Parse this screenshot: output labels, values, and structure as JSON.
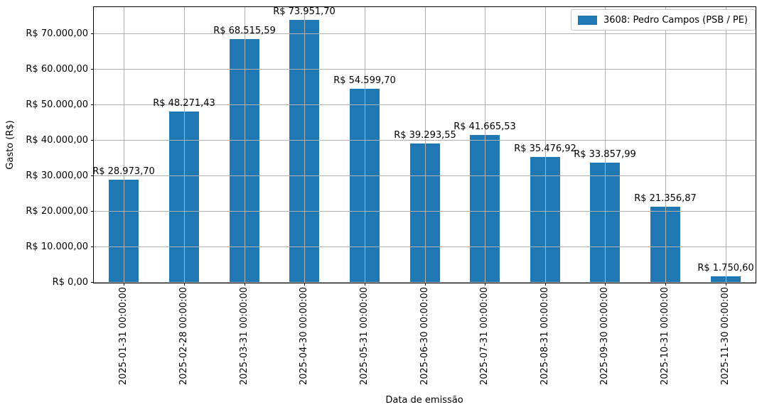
{
  "chart_data": {
    "type": "bar",
    "title": "",
    "xlabel": "Data de emissão",
    "ylabel": "Gasto (R$)",
    "categories": [
      "2025-01-31 00:00:00",
      "2025-02-28 00:00:00",
      "2025-03-31 00:00:00",
      "2025-04-30 00:00:00",
      "2025-05-31 00:00:00",
      "2025-06-30 00:00:00",
      "2025-07-31 00:00:00",
      "2025-08-31 00:00:00",
      "2025-09-30 00:00:00",
      "2025-10-31 00:00:00",
      "2025-11-30 00:00:00"
    ],
    "series": [
      {
        "name": "3608: Pedro Campos (PSB / PE)",
        "color": "#1f77b4",
        "values": [
          28973.7,
          48271.43,
          68515.59,
          73951.7,
          54599.7,
          39293.55,
          41665.53,
          35476.92,
          33857.99,
          21356.87,
          1750.6
        ],
        "value_labels": [
          "R$ 28.973,70",
          "R$ 48.271,43",
          "R$ 68.515,59",
          "R$ 73.951,70",
          "R$ 54.599,70",
          "R$ 39.293,55",
          "R$ 41.665,53",
          "R$ 35.476,92",
          "R$ 33.857,99",
          "R$ 21.356,87",
          "R$ 1.750,60"
        ]
      }
    ],
    "y_axis": {
      "tick_values": [
        0,
        10000,
        20000,
        30000,
        40000,
        50000,
        60000,
        70000
      ],
      "tick_labels": [
        "R$ 0,00",
        "R$ 10.000,00",
        "R$ 20.000,00",
        "R$ 30.000,00",
        "R$ 40.000,00",
        "R$ 50.000,00",
        "R$ 60.000,00",
        "R$ 70.000,00"
      ],
      "min": 0,
      "max": 77600
    },
    "grid": true,
    "grid_color": "#b0b0b0",
    "bar_width_fraction": 0.5,
    "legend_position": "upper right"
  }
}
